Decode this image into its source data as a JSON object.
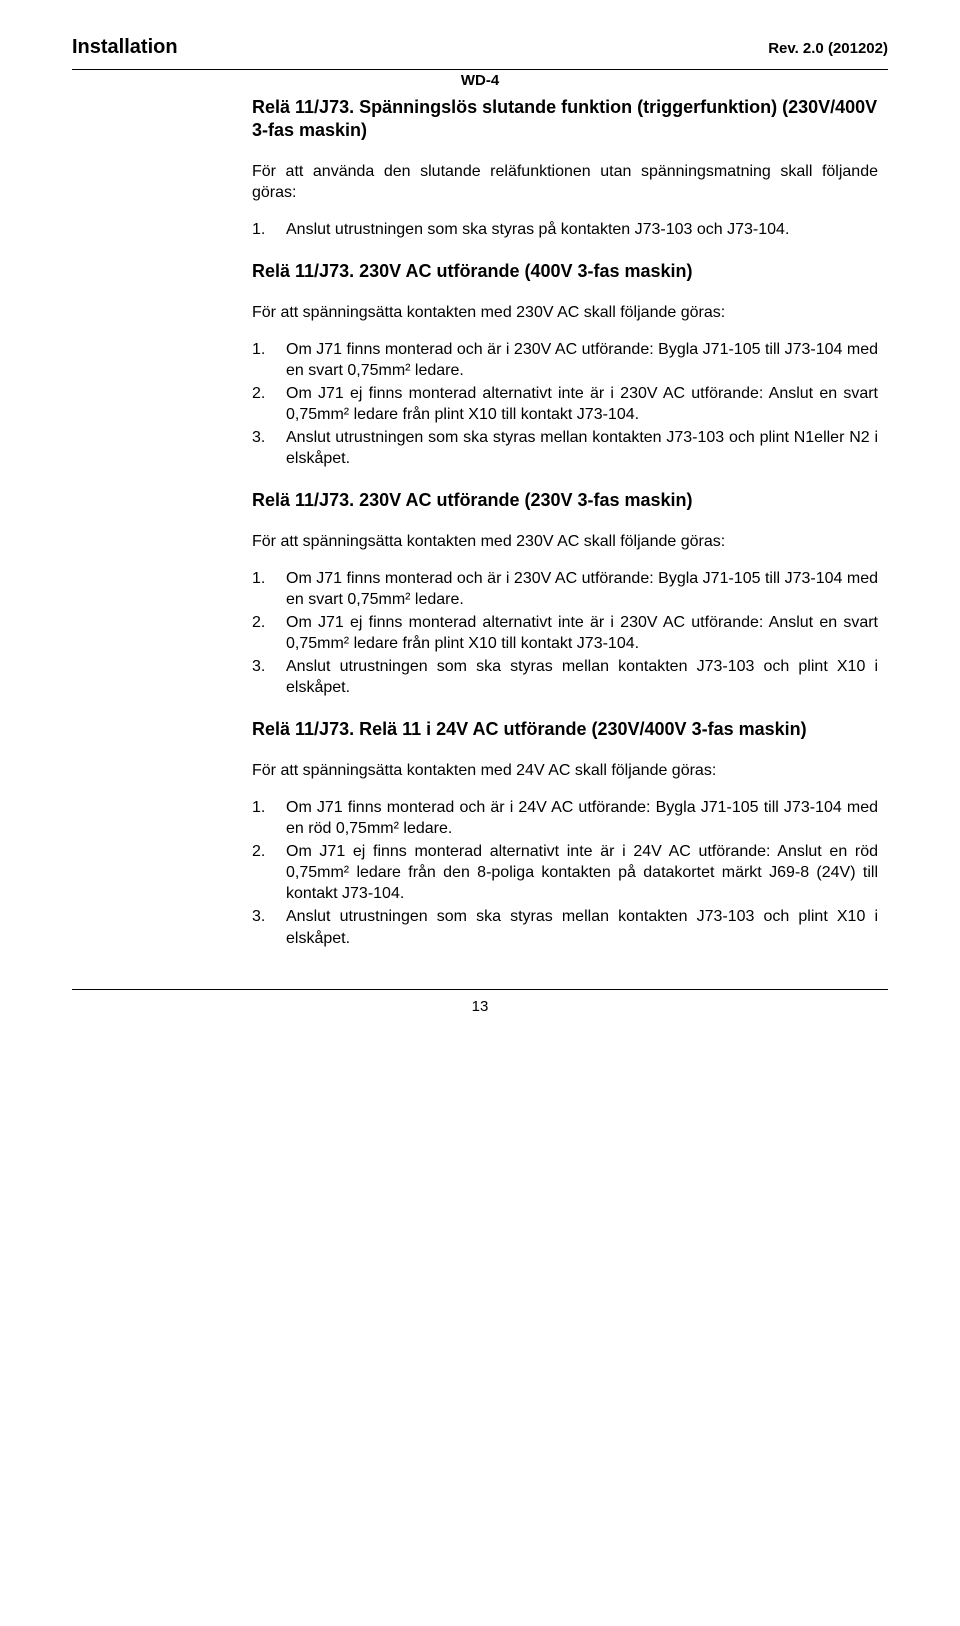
{
  "header": {
    "left": "Installation",
    "center": "WD-4",
    "right": "Rev. 2.0 (201202)"
  },
  "sections": [
    {
      "heading": "Relä 11/J73. Spänningslös slutande funktion (triggerfunktion) (230V/400V 3-fas maskin)",
      "intro": "För att använda den slutande reläfunktionen utan spänningsmatning skall följande göras:",
      "items": [
        "Anslut utrustningen som ska styras på kontakten J73-103 och J73-104."
      ]
    },
    {
      "heading": "Relä 11/J73. 230V AC utförande (400V 3-fas maskin)",
      "intro": "För att spänningsätta kontakten med 230V AC skall följande göras:",
      "items": [
        "Om J71 finns monterad och är i 230V AC utförande: Bygla J71-105 till J73-104 med en svart 0,75mm² ledare.",
        "Om J71 ej  finns monterad alternativt inte är i 230V AC utförande: Anslut en svart 0,75mm² ledare från plint X10 till kontakt J73-104.",
        "Anslut utrustningen som ska styras mellan kontakten J73-103 och plint N1eller N2 i elskåpet."
      ]
    },
    {
      "heading": "Relä 11/J73. 230V AC utförande (230V 3-fas maskin)",
      "intro": "För att spänningsätta kontakten med 230V AC skall följande göras:",
      "items": [
        "Om J71 finns monterad och är i 230V AC utförande: Bygla J71-105 till J73-104 med en svart 0,75mm² ledare.",
        "Om J71 ej  finns monterad alternativt inte är i 230V AC utförande: Anslut en svart 0,75mm² ledare från plint X10 till kontakt J73-104.",
        "Anslut utrustningen som ska styras mellan kontakten J73-103 och plint X10 i elskåpet."
      ]
    },
    {
      "heading": "Relä 11/J73. Relä 11 i 24V AC utförande (230V/400V 3-fas maskin)",
      "intro": "För att spänningsätta kontakten med 24V AC skall följande göras:",
      "items": [
        "Om J71 finns monterad och är i 24V AC utförande: Bygla J71-105 till J73-104 med en röd 0,75mm² ledare.",
        "Om J71 ej  finns monterad alternativt inte är i 24V AC utförande: Anslut en röd 0,75mm² ledare från den 8-poliga kontakten på datakortet märkt J69-8 (24V) till kontakt J73-104.",
        "Anslut utrustningen som ska styras mellan kontakten J73-103 och plint X10 i elskåpet."
      ]
    }
  ],
  "page_number": "13"
}
